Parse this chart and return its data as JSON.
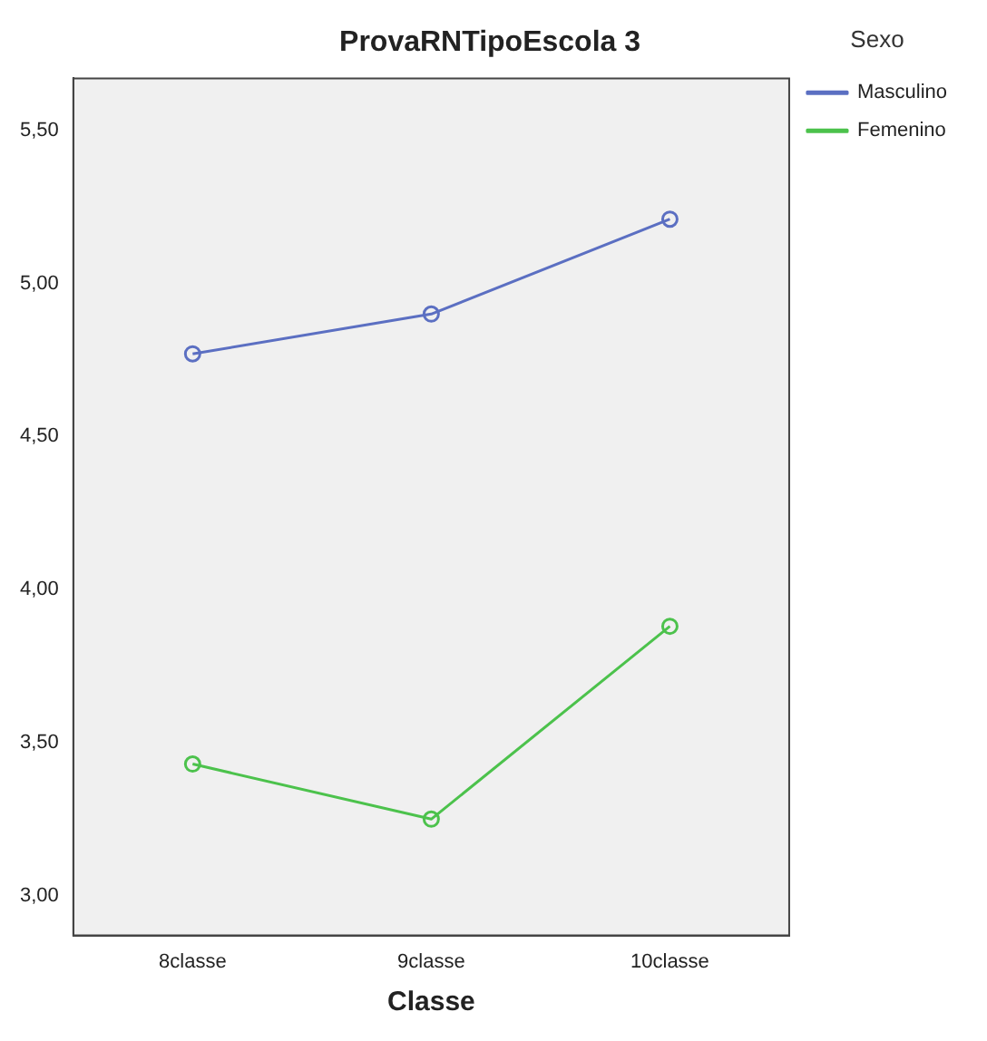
{
  "chart_data": {
    "type": "line",
    "title": "ProvaRNTipoEscola 3",
    "xlabel": "Classe",
    "legend_title": "Sexo",
    "legend": "top right",
    "marker": "circle",
    "grid": false,
    "categories": [
      "8classe",
      "9classe",
      "10classe"
    ],
    "series": [
      {
        "name": "Masculino",
        "color": "#5b6fc2",
        "values": [
          4.77,
          4.9,
          5.21
        ]
      },
      {
        "name": "Femenino",
        "color": "#4cc24c",
        "values": [
          3.43,
          3.25,
          3.88
        ]
      }
    ],
    "ylim": [
      2.87,
      5.67
    ],
    "yticks": [
      {
        "value": 3,
        "label": "3,00"
      },
      {
        "value": 3.5,
        "label": "3,50"
      },
      {
        "value": 4,
        "label": "4,00"
      },
      {
        "value": 4.5,
        "label": "4,50"
      },
      {
        "value": 5,
        "label": "5,00"
      },
      {
        "value": 5.5,
        "label": "5,50"
      }
    ]
  }
}
